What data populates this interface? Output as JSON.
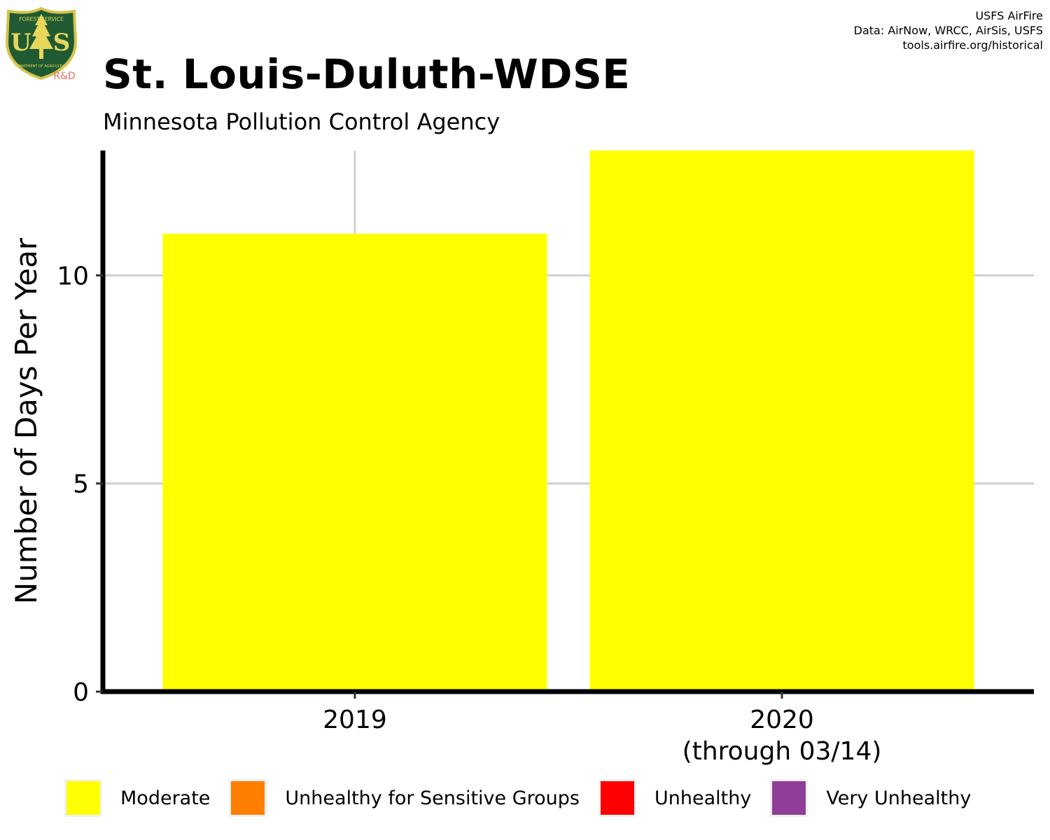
{
  "logo": {
    "icon": "usfs-shield-icon",
    "top_text": "FOREST SERVICE",
    "letters_left": "U",
    "letters_right": "S",
    "bottom_text": "DEPARTMENT OF AGRICULTURE",
    "badge": "R&D"
  },
  "credits": {
    "line1": "USFS AirFire",
    "line2": "Data: AirNow, WRCC, AirSis, USFS",
    "line3": "tools.airfire.org/historical"
  },
  "chart_data": {
    "type": "bar",
    "title": "St. Louis-Duluth-WDSE",
    "subtitle": "Minnesota Pollution Control Agency",
    "ylabel": "Number of Days Per Year",
    "xlabel": "",
    "ylim": [
      0,
      13
    ],
    "yticks": [
      0,
      5,
      10
    ],
    "categories": [
      {
        "lines": [
          "2019"
        ]
      },
      {
        "lines": [
          "2020",
          "(through 03/14)"
        ]
      }
    ],
    "series": [
      {
        "name": "Moderate",
        "color": "#FFFF00",
        "values": [
          11,
          13
        ]
      },
      {
        "name": "Unhealthy for Sensitive Groups",
        "color": "#FF7E00",
        "values": [
          0,
          0
        ]
      },
      {
        "name": "Unhealthy",
        "color": "#FF0000",
        "values": [
          0,
          0
        ]
      },
      {
        "name": "Very Unhealthy",
        "color": "#8F3F97",
        "values": [
          0,
          0
        ]
      }
    ],
    "grid": true,
    "legend_position": "bottom"
  }
}
